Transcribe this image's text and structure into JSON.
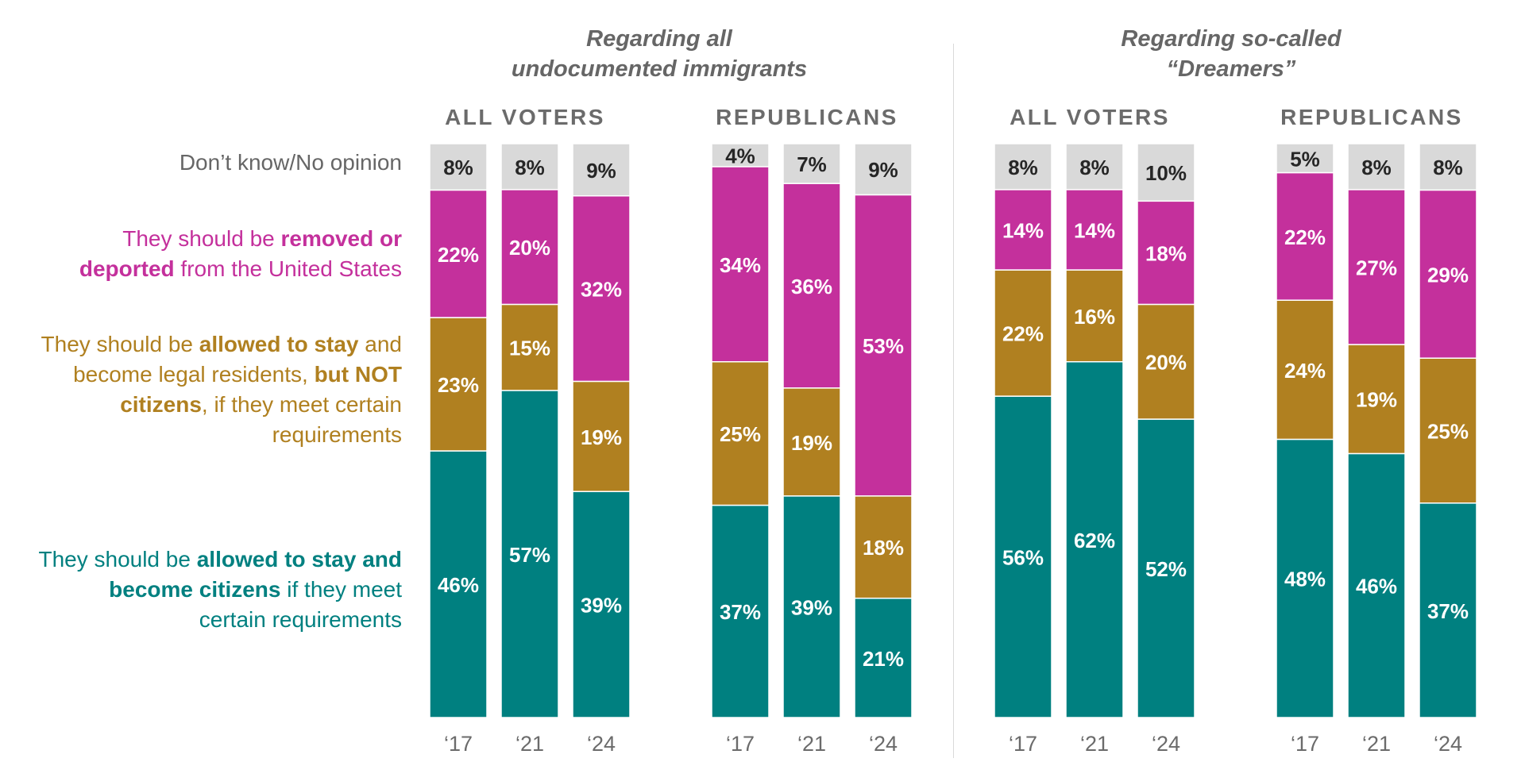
{
  "panels": [
    {
      "title_line1": "Regarding all",
      "title_line2": "undocumented immigrants"
    },
    {
      "title_line1": "Regarding so-called",
      "title_line2": "“Dreamers”"
    }
  ],
  "legend": {
    "dont_know": "Don’t know/No opinion",
    "deport": {
      "pre": "They should be ",
      "bold": "removed or deported",
      "post": " from the United States"
    },
    "no_citizens": {
      "pre": "They should be ",
      "bold1": "allowed to stay",
      "mid": " and become legal residents, ",
      "bold2": "but NOT citizens",
      "post": ", if they meet certain requirements"
    },
    "citizens": {
      "pre": "They should be ",
      "bold": "allowed to stay and become citizens",
      "post": " if they meet certain requirements"
    }
  },
  "colors": {
    "citizens": "#008080",
    "no_citizens": "#b08020",
    "deport": "#c4309c",
    "dont_know": "#d9d9d9",
    "white_text": "#ffffff",
    "dark_text": "#262626"
  },
  "chart_data": {
    "type": "bar",
    "stacked": true,
    "normalized_to_100": true,
    "segment_order_bottom_to_top": [
      "citizens",
      "no_citizens",
      "deport",
      "dont_know"
    ],
    "x_tick_labels": [
      "‘17",
      "‘21",
      "‘24"
    ],
    "groups": [
      {
        "panel": "Regarding all undocumented immigrants",
        "label": "ALL VOTERS",
        "bars": [
          {
            "year": "‘17",
            "citizens": 46,
            "no_citizens": 23,
            "deport": 22,
            "dont_know": 8
          },
          {
            "year": "‘21",
            "citizens": 57,
            "no_citizens": 15,
            "deport": 20,
            "dont_know": 8
          },
          {
            "year": "‘24",
            "citizens": 39,
            "no_citizens": 19,
            "deport": 32,
            "dont_know": 9
          }
        ]
      },
      {
        "panel": "Regarding all undocumented immigrants",
        "label": "REPUBLICANS",
        "bars": [
          {
            "year": "‘17",
            "citizens": 37,
            "no_citizens": 25,
            "deport": 34,
            "dont_know": 4
          },
          {
            "year": "‘21",
            "citizens": 39,
            "no_citizens": 19,
            "deport": 36,
            "dont_know": 7
          },
          {
            "year": "‘24",
            "citizens": 21,
            "no_citizens": 18,
            "deport": 53,
            "dont_know": 9
          }
        ]
      },
      {
        "panel": "Regarding so-called “Dreamers”",
        "label": "ALL VOTERS",
        "bars": [
          {
            "year": "‘17",
            "citizens": 56,
            "no_citizens": 22,
            "deport": 14,
            "dont_know": 8
          },
          {
            "year": "‘21",
            "citizens": 62,
            "no_citizens": 16,
            "deport": 14,
            "dont_know": 8
          },
          {
            "year": "‘24",
            "citizens": 52,
            "no_citizens": 20,
            "deport": 18,
            "dont_know": 10
          }
        ]
      },
      {
        "panel": "Regarding so-called “Dreamers”",
        "label": "REPUBLICANS",
        "bars": [
          {
            "year": "‘17",
            "citizens": 48,
            "no_citizens": 24,
            "deport": 22,
            "dont_know": 5
          },
          {
            "year": "‘21",
            "citizens": 46,
            "no_citizens": 19,
            "deport": 27,
            "dont_know": 8
          },
          {
            "year": "‘24",
            "citizens": 37,
            "no_citizens": 25,
            "deport": 29,
            "dont_know": 8
          }
        ]
      }
    ]
  }
}
